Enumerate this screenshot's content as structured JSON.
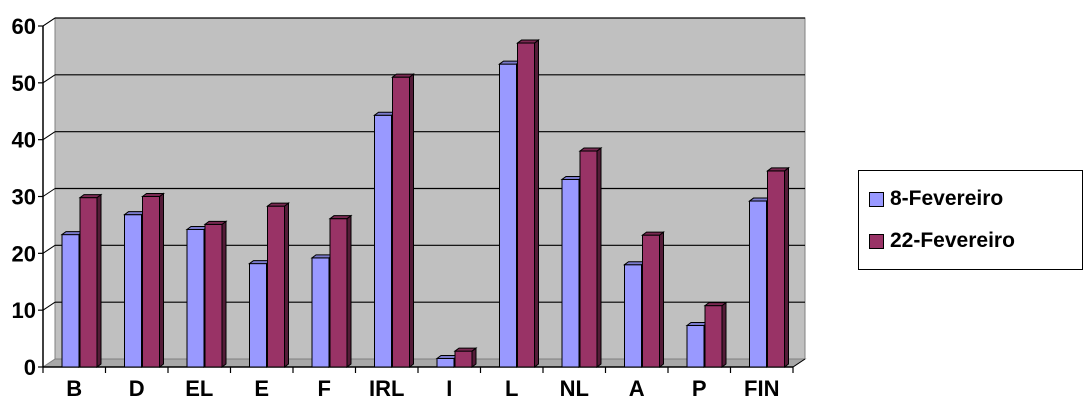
{
  "chart_data": {
    "type": "bar",
    "categories": [
      "B",
      "D",
      "EL",
      "E",
      "F",
      "IRL",
      "I",
      "L",
      "NL",
      "A",
      "P",
      "FIN"
    ],
    "series": [
      {
        "name": "8-Fevereiro",
        "values": [
          23.3,
          26.8,
          24.2,
          18.2,
          19.2,
          44.3,
          1.5,
          53.3,
          33.0,
          18.0,
          7.3,
          29.2
        ],
        "color": "#9999ff"
      },
      {
        "name": "22-Fevereiro",
        "values": [
          29.8,
          30.0,
          25.1,
          28.3,
          26.1,
          51.0,
          2.8,
          57.0,
          38.0,
          23.2,
          10.8,
          34.5
        ],
        "color": "#993366"
      }
    ],
    "yticks": [
      "0",
      "10",
      "20",
      "30",
      "40",
      "50",
      "60"
    ],
    "ylim": [
      0,
      60
    ],
    "grid": true,
    "legend_position": "right",
    "plot_background": "#c0c0c0"
  }
}
